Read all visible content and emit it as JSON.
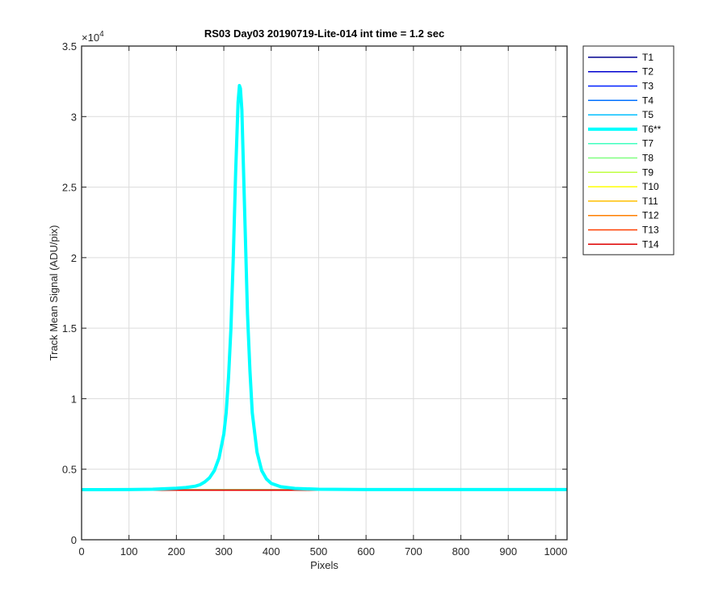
{
  "chart_data": {
    "type": "line",
    "title": "RS03 Day03 20190719-Lite-014 int time = 1.2 sec",
    "xlabel": "Pixels",
    "ylabel": "Track Mean Signal (ADU/pix)",
    "xlim": [
      0,
      1024
    ],
    "ylim": [
      0,
      35000
    ],
    "y_exponent_label": "×10^4",
    "grid": true,
    "legend_position": "outside-right",
    "x_ticks": [
      0,
      100,
      200,
      300,
      400,
      500,
      600,
      700,
      800,
      900,
      1000
    ],
    "x_tick_labels": [
      "0",
      "100",
      "200",
      "300",
      "400",
      "500",
      "600",
      "700",
      "800",
      "900",
      "1000"
    ],
    "y_ticks": [
      0,
      5000,
      10000,
      15000,
      20000,
      25000,
      30000,
      35000
    ],
    "y_tick_labels": [
      "0",
      "0.5",
      "1",
      "1.5",
      "2",
      "2.5",
      "3",
      "3.5"
    ],
    "series": [
      {
        "name": "T1",
        "color": "#00008f",
        "baseline": 3520
      },
      {
        "name": "T2",
        "color": "#0000cf",
        "baseline": 3520
      },
      {
        "name": "T3",
        "color": "#0020ff",
        "baseline": 3520
      },
      {
        "name": "T4",
        "color": "#0070ff",
        "baseline": 3520
      },
      {
        "name": "T5",
        "color": "#00bfff",
        "baseline": 3520
      },
      {
        "name": "T6**",
        "color": "#00ffff",
        "highlight": true,
        "x": [
          0,
          100,
          150,
          200,
          220,
          240,
          250,
          260,
          270,
          280,
          290,
          300,
          305,
          310,
          315,
          320,
          325,
          330,
          333,
          335,
          338,
          340,
          345,
          350,
          355,
          360,
          370,
          380,
          390,
          400,
          420,
          450,
          500,
          600,
          700,
          800,
          900,
          1024
        ],
        "y": [
          3550,
          3560,
          3580,
          3650,
          3700,
          3800,
          3900,
          4100,
          4400,
          4900,
          5800,
          7500,
          9000,
          11500,
          15000,
          20000,
          26000,
          31000,
          32200,
          32000,
          30500,
          28000,
          22000,
          16000,
          12000,
          9000,
          6200,
          4900,
          4300,
          4000,
          3760,
          3640,
          3580,
          3560,
          3560,
          3560,
          3560,
          3560
        ]
      },
      {
        "name": "T7",
        "color": "#40ffbf",
        "baseline": 3560
      },
      {
        "name": "T8",
        "color": "#80ff80",
        "baseline": 3540
      },
      {
        "name": "T9",
        "color": "#bfff40",
        "baseline": 3540
      },
      {
        "name": "T10",
        "color": "#ffff00",
        "baseline": 3530
      },
      {
        "name": "T11",
        "color": "#ffbf00",
        "baseline": 3530
      },
      {
        "name": "T12",
        "color": "#ff7f00",
        "baseline": 3520
      },
      {
        "name": "T13",
        "color": "#ff3f00",
        "baseline": 3520
      },
      {
        "name": "T14",
        "color": "#df0000",
        "baseline": 3520
      }
    ]
  }
}
